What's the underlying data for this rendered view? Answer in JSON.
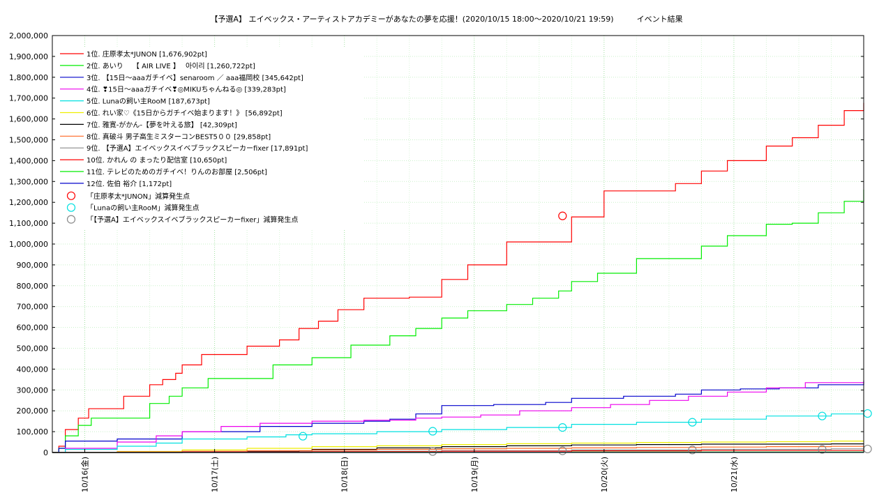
{
  "chart_data": {
    "type": "line",
    "title": "【予選A】 エイベックス・アーティストアカデミーがあなたの夢を応援！(2020/10/15 18:00〜2020/10/21 19:59)　　　イベント結果",
    "ylim": [
      0,
      2000000
    ],
    "yticks": [
      0,
      100000,
      200000,
      300000,
      400000,
      500000,
      600000,
      700000,
      800000,
      900000,
      1000000,
      1100000,
      1200000,
      1300000,
      1400000,
      1500000,
      1600000,
      1700000,
      1800000,
      1900000,
      2000000
    ],
    "ytick_labels": [
      "0",
      "100,000",
      "200,000",
      "300,000",
      "400,000",
      "500,000",
      "600,000",
      "700,000",
      "800,000",
      "900,000",
      "1,000,000",
      "1,100,000",
      "1,200,000",
      "1,300,000",
      "1,400,000",
      "1,500,000",
      "1,600,000",
      "1,700,000",
      "1,800,000",
      "1,900,000",
      "2,000,000"
    ],
    "xlim": [
      0,
      6.25
    ],
    "x_units": "days since 2020/10/15 18:00",
    "xticks": [
      0.25,
      1.25,
      2.25,
      3.25,
      4.25,
      5.25
    ],
    "xtick_labels": [
      "10/16(金)",
      "10/17(土)",
      "10/18(日)",
      "10/19(月)",
      "10/20(火)",
      "10/21(水)"
    ],
    "grid": true,
    "legend_position": "top-left",
    "series": [
      {
        "name": "1位. 庄原孝太*JUNON [1,676,902pt]",
        "color": "#ff0000",
        "x": [
          0,
          0.05,
          0.1,
          0.2,
          0.28,
          0.4,
          0.55,
          0.6,
          0.75,
          0.85,
          0.95,
          1.0,
          1.15,
          1.3,
          1.5,
          1.75,
          1.9,
          2.05,
          2.2,
          2.4,
          2.75,
          3.0,
          3.2,
          3.5,
          3.7,
          4.0,
          4.25,
          4.5,
          4.8,
          5.0,
          5.2,
          5.5,
          5.7,
          5.9,
          6.1,
          6.25
        ],
        "y": [
          0,
          30000,
          110000,
          165000,
          210000,
          210000,
          270000,
          270000,
          325000,
          350000,
          380000,
          420000,
          470000,
          470000,
          510000,
          540000,
          595000,
          630000,
          685000,
          740000,
          745000,
          830000,
          900000,
          1010000,
          1010000,
          1130000,
          1255000,
          1255000,
          1290000,
          1350000,
          1400000,
          1470000,
          1510000,
          1570000,
          1640000,
          1676902
        ]
      },
      {
        "name": "2位. あいり　 【 AIR LIVE 】　 아이리 [1,260,722pt]",
        "color": "#00ee00",
        "x": [
          0,
          0.05,
          0.1,
          0.2,
          0.3,
          0.6,
          0.75,
          0.9,
          1.0,
          1.2,
          1.5,
          1.7,
          2.0,
          2.3,
          2.6,
          2.8,
          3.0,
          3.2,
          3.5,
          3.7,
          3.9,
          4.0,
          4.2,
          4.5,
          4.8,
          5.0,
          5.2,
          5.5,
          5.7,
          5.9,
          6.1,
          6.25
        ],
        "y": [
          0,
          20000,
          80000,
          130000,
          165000,
          165000,
          235000,
          270000,
          310000,
          355000,
          355000,
          420000,
          455000,
          515000,
          560000,
          595000,
          645000,
          680000,
          710000,
          740000,
          775000,
          820000,
          860000,
          930000,
          930000,
          990000,
          1040000,
          1095000,
          1100000,
          1150000,
          1205000,
          1260722
        ]
      },
      {
        "name": "3位. 【15日〜aaaガチイベ】senaroom ／ aaa福岡校 [345,642pt]",
        "color": "#0000cc",
        "x": [
          0,
          0.05,
          0.1,
          0.3,
          0.5,
          0.9,
          1.0,
          1.3,
          1.6,
          2.0,
          2.4,
          2.6,
          2.8,
          3.0,
          3.4,
          3.8,
          4.0,
          4.4,
          4.8,
          5.0,
          5.3,
          5.6,
          5.9,
          6.25
        ],
        "y": [
          0,
          20000,
          55000,
          55000,
          65000,
          65000,
          100000,
          100000,
          125000,
          140000,
          150000,
          160000,
          185000,
          225000,
          230000,
          240000,
          260000,
          270000,
          280000,
          300000,
          305000,
          310000,
          325000,
          345642
        ]
      },
      {
        "name": "4位. ❣15日〜aaaガチイベ❣◎MIKUちゃんねる◎ [339,283pt]",
        "color": "#ee00ee",
        "x": [
          0,
          0.1,
          0.5,
          0.8,
          1.0,
          1.3,
          1.6,
          2.0,
          2.4,
          2.8,
          3.0,
          3.3,
          3.6,
          4.0,
          4.3,
          4.6,
          4.9,
          5.2,
          5.5,
          5.8,
          6.0,
          6.25
        ],
        "y": [
          0,
          20000,
          50000,
          80000,
          100000,
          125000,
          140000,
          150000,
          155000,
          165000,
          170000,
          180000,
          200000,
          215000,
          230000,
          250000,
          270000,
          290000,
          310000,
          335000,
          335000,
          339283
        ]
      },
      {
        "name": "5位. Lunaの飼い主RooM [187,673pt]",
        "color": "#00e0e0",
        "x": [
          0,
          0.1,
          0.5,
          0.8,
          1.0,
          1.5,
          1.8,
          2.0,
          2.5,
          3.0,
          3.5,
          4.0,
          4.5,
          5.0,
          5.5,
          6.0,
          6.25
        ],
        "y": [
          0,
          15000,
          30000,
          45000,
          65000,
          75000,
          85000,
          90000,
          100000,
          110000,
          120000,
          135000,
          145000,
          160000,
          175000,
          185000,
          187673
        ]
      },
      {
        "name": "6位. れい家♡《15日からガチイベ始まります！》 [56,892pt]",
        "color": "#eeee00",
        "x": [
          0,
          0.5,
          1.0,
          1.5,
          2.0,
          2.5,
          3.0,
          3.5,
          4.0,
          4.5,
          5.0,
          5.5,
          6.0,
          6.25
        ],
        "y": [
          0,
          5000,
          12000,
          20000,
          28000,
          32000,
          38000,
          42000,
          45000,
          48000,
          50000,
          52000,
          55000,
          56892
        ]
      },
      {
        "name": "7位. 雅寛-がかん-【夢を叶える旅】 [42,309pt]",
        "color": "#000000",
        "x": [
          0,
          1.0,
          1.5,
          1.9,
          2.0,
          2.5,
          3.0,
          3.5,
          4.0,
          4.5,
          5.0,
          6.0,
          6.25
        ],
        "y": [
          0,
          2000,
          5000,
          8000,
          15000,
          22000,
          28000,
          32000,
          36000,
          38000,
          40000,
          41500,
          42309
        ]
      },
      {
        "name": "8位. 真破斗 男子高生ミスターコンBEST5００ [29,858pt]",
        "color": "#ff6622",
        "x": [
          0,
          0.5,
          1.0,
          1.5,
          2.0,
          2.5,
          3.0,
          3.5,
          4.0,
          4.5,
          5.0,
          5.5,
          6.0,
          6.25
        ],
        "y": [
          0,
          3000,
          6000,
          9000,
          12000,
          15000,
          18000,
          20000,
          22000,
          24000,
          26000,
          28000,
          29500,
          29858
        ]
      },
      {
        "name": "9位. 【予選A】エイベックスイベブラックスピーカーfixer [17,891pt]",
        "color": "#888888",
        "x": [
          0,
          1.0,
          2.0,
          3.0,
          4.0,
          5.0,
          6.0,
          6.25
        ],
        "y": [
          0,
          3000,
          6000,
          9000,
          12000,
          15000,
          17500,
          17891
        ]
      },
      {
        "name": "10位. かれん の まったり配信室 [10,650pt]",
        "color": "#ff0000",
        "x": [
          0,
          1.0,
          2.0,
          3.0,
          4.0,
          5.0,
          6.25
        ],
        "y": [
          0,
          2000,
          4000,
          6000,
          8000,
          9500,
          10650
        ]
      },
      {
        "name": "11位. テレビのためのガチイベ！りんのお部屋 [2,506pt]",
        "color": "#00ee00",
        "x": [
          0,
          2.0,
          4.0,
          6.25
        ],
        "y": [
          0,
          1000,
          2000,
          2506
        ]
      },
      {
        "name": "12位. 佐伯 裕介 [1,172pt]",
        "color": "#0000cc",
        "x": [
          0,
          3.0,
          6.25
        ],
        "y": [
          0,
          600,
          1172
        ]
      }
    ],
    "markers": [
      {
        "name": "「庄原孝太*JUNON」減算発生点",
        "color": "#ff0000",
        "points": [
          {
            "x": 3.93,
            "y": 1135000
          }
        ]
      },
      {
        "name": "「Lunaの飼い主RooM」減算発生点",
        "color": "#00e0e0",
        "points": [
          {
            "x": 1.93,
            "y": 78000
          },
          {
            "x": 2.93,
            "y": 102000
          },
          {
            "x": 3.93,
            "y": 120000
          },
          {
            "x": 4.93,
            "y": 145000
          },
          {
            "x": 5.93,
            "y": 175000
          },
          {
            "x": 6.28,
            "y": 187000
          }
        ]
      },
      {
        "name": "「【予選A】エイベックスイベブラックスピーカーfixer」減算発生点",
        "color": "#888888",
        "points": [
          {
            "x": 2.93,
            "y": 5000
          },
          {
            "x": 3.93,
            "y": 8000
          },
          {
            "x": 4.93,
            "y": 12000
          },
          {
            "x": 5.93,
            "y": 15000
          },
          {
            "x": 6.28,
            "y": 17000
          }
        ]
      }
    ]
  }
}
